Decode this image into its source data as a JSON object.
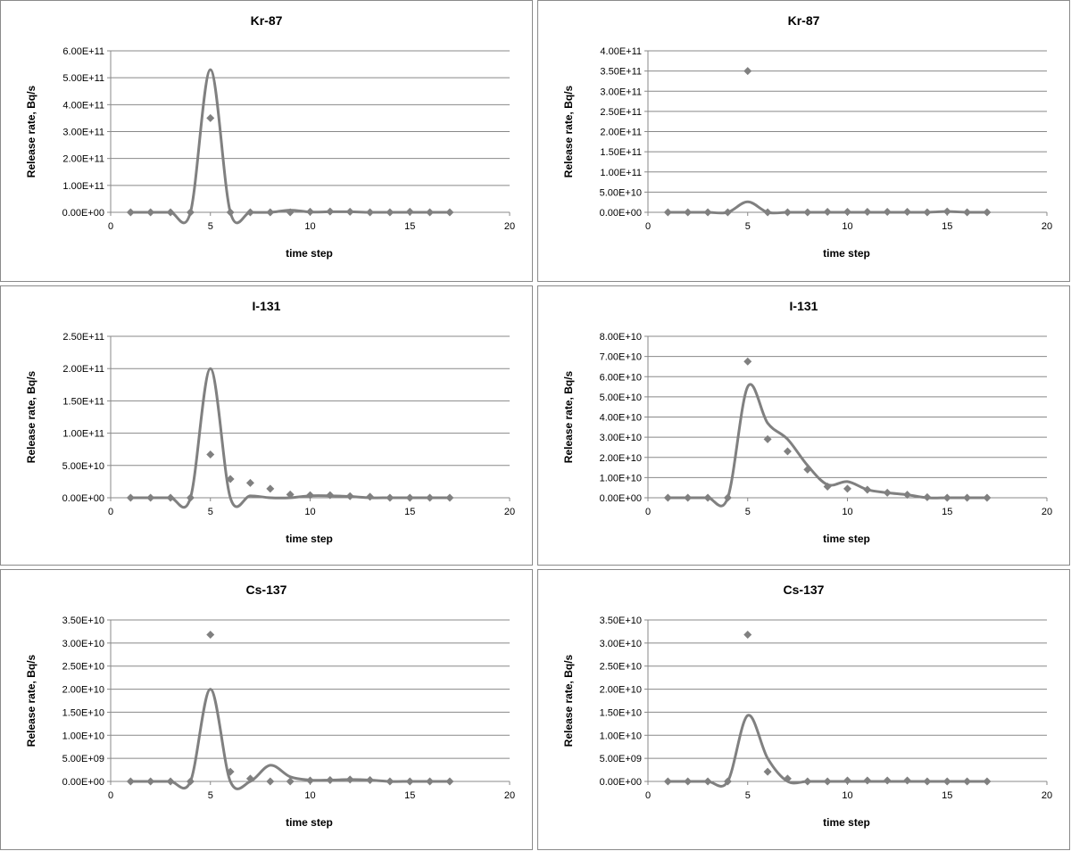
{
  "colors": {
    "series": "#808080",
    "grid": "#888888",
    "axis": "#888888",
    "border": "#8a8a8a"
  },
  "chart_data": [
    {
      "type": "scatter",
      "title": "Kr-87",
      "xlabel": "time step",
      "ylabel": "Release rate, Bq/s",
      "xlim": [
        0,
        20
      ],
      "xticks": [
        0,
        5,
        10,
        15,
        20
      ],
      "ylim": [
        0,
        600000000000.0
      ],
      "yticks": [
        "0.00E+00",
        "1.00E+11",
        "2.00E+11",
        "3.00E+11",
        "4.00E+11",
        "5.00E+11",
        "6.00E+11"
      ],
      "grid": true,
      "series": [
        {
          "kind": "points",
          "x": [
            1,
            2,
            3,
            4,
            5,
            6,
            7,
            8,
            9,
            10,
            11,
            12,
            13,
            14,
            15,
            16,
            17
          ],
          "y": [
            0,
            0,
            0,
            0,
            350000000000.0,
            0,
            0,
            0,
            0,
            2000000000.0,
            3000000000.0,
            2000000000.0,
            0,
            0,
            2000000000.0,
            0,
            0
          ]
        },
        {
          "kind": "smooth-line",
          "x": [
            1,
            2,
            3,
            4,
            5,
            6,
            7,
            8,
            9,
            10,
            11,
            12,
            13,
            14,
            15,
            16,
            17
          ],
          "y": [
            0,
            0,
            0,
            0,
            530000000000.0,
            0,
            0,
            0,
            8000000000.0,
            1000000000.0,
            2000000000.0,
            2000000000.0,
            0,
            0,
            0,
            0,
            0
          ]
        }
      ]
    },
    {
      "type": "scatter",
      "title": "Kr-87",
      "xlabel": "time step",
      "ylabel": "Release rate, Bq/s",
      "xlim": [
        0,
        20
      ],
      "xticks": [
        0,
        5,
        10,
        15,
        20
      ],
      "ylim": [
        0,
        400000000000.0
      ],
      "yticks": [
        "0.00E+00",
        "5.00E+10",
        "1.00E+11",
        "1.50E+11",
        "2.00E+11",
        "2.50E+11",
        "3.00E+11",
        "3.50E+11",
        "4.00E+11"
      ],
      "grid": true,
      "series": [
        {
          "kind": "points",
          "x": [
            1,
            2,
            3,
            4,
            5,
            6,
            7,
            8,
            9,
            10,
            11,
            12,
            13,
            14,
            15,
            16,
            17
          ],
          "y": [
            0,
            0,
            0,
            0,
            350000000000.0,
            0,
            0,
            0,
            1000000000.0,
            1000000000.0,
            1000000000.0,
            1000000000.0,
            1000000000.0,
            0,
            2000000000.0,
            0,
            0
          ]
        },
        {
          "kind": "smooth-line",
          "x": [
            1,
            2,
            3,
            4,
            5,
            6,
            7,
            8,
            9,
            10,
            11,
            12,
            13,
            14,
            15,
            16,
            17
          ],
          "y": [
            0,
            0,
            0,
            0,
            26000000000.0,
            0,
            0,
            0,
            0,
            0,
            0,
            0,
            0,
            0,
            2000000000.0,
            0,
            0
          ]
        }
      ]
    },
    {
      "type": "scatter",
      "title": "I-131",
      "xlabel": "time step",
      "ylabel": "Release rate, Bq/s",
      "xlim": [
        0,
        20
      ],
      "xticks": [
        0,
        5,
        10,
        15,
        20
      ],
      "ylim": [
        0,
        250000000000.0
      ],
      "yticks": [
        "0.00E+00",
        "5.00E+10",
        "1.00E+11",
        "1.50E+11",
        "2.00E+11",
        "2.50E+11"
      ],
      "grid": true,
      "series": [
        {
          "kind": "points",
          "x": [
            1,
            2,
            3,
            4,
            5,
            6,
            7,
            8,
            9,
            10,
            11,
            12,
            13,
            14,
            15,
            16,
            17
          ],
          "y": [
            0,
            0,
            0,
            0,
            67000000000.0,
            29000000000.0,
            23000000000.0,
            14000000000.0,
            5000000000.0,
            4000000000.0,
            4000000000.0,
            2500000000.0,
            1500000000.0,
            0,
            0,
            0,
            0
          ]
        },
        {
          "kind": "smooth-line",
          "x": [
            1,
            2,
            3,
            4,
            5,
            6,
            7,
            8,
            9,
            10,
            11,
            12,
            13,
            14,
            15,
            16,
            17
          ],
          "y": [
            0,
            0,
            0,
            0,
            200000000000.0,
            0,
            3000000000.0,
            0,
            0,
            3000000000.0,
            3000000000.0,
            2000000000.0,
            0,
            0,
            0,
            0,
            0
          ]
        }
      ]
    },
    {
      "type": "scatter",
      "title": "I-131",
      "xlabel": "time step",
      "ylabel": "Release rate, Bq/s",
      "xlim": [
        0,
        20
      ],
      "xticks": [
        0,
        5,
        10,
        15,
        20
      ],
      "ylim": [
        0,
        80000000000.0
      ],
      "yticks": [
        "0.00E+00",
        "1.00E+10",
        "2.00E+10",
        "3.00E+10",
        "4.00E+10",
        "5.00E+10",
        "6.00E+10",
        "7.00E+10",
        "8.00E+10"
      ],
      "grid": true,
      "series": [
        {
          "kind": "points",
          "x": [
            1,
            2,
            3,
            4,
            5,
            6,
            7,
            8,
            9,
            10,
            11,
            12,
            13,
            14,
            15,
            16,
            17
          ],
          "y": [
            0,
            0,
            0,
            0,
            67500000000.0,
            29000000000.0,
            23000000000.0,
            14000000000.0,
            5500000000.0,
            4500000000.0,
            4000000000.0,
            2500000000.0,
            1500000000.0,
            300000000.0,
            0,
            0,
            0
          ]
        },
        {
          "kind": "smooth-line",
          "x": [
            1,
            2,
            3,
            4,
            5,
            6,
            7,
            8,
            9,
            10,
            11,
            12,
            13,
            14,
            15,
            16,
            17
          ],
          "y": [
            0,
            0,
            0,
            0,
            55000000000.0,
            37000000000.0,
            29000000000.0,
            16000000000.0,
            6500000000.0,
            8000000000.0,
            4000000000.0,
            2500000000.0,
            1500000000.0,
            0,
            0,
            0,
            0
          ]
        }
      ]
    },
    {
      "type": "scatter",
      "title": "Cs-137",
      "xlabel": "time step",
      "ylabel": "Release rate, Bq/s",
      "xlim": [
        0,
        20
      ],
      "xticks": [
        0,
        5,
        10,
        15,
        20
      ],
      "ylim": [
        0,
        35000000000.0
      ],
      "yticks": [
        "0.00E+00",
        "5.00E+09",
        "1.00E+10",
        "1.50E+10",
        "2.00E+10",
        "2.50E+10",
        "3.00E+10",
        "3.50E+10"
      ],
      "grid": true,
      "series": [
        {
          "kind": "points",
          "x": [
            1,
            2,
            3,
            4,
            5,
            6,
            7,
            8,
            9,
            10,
            11,
            12,
            13,
            14,
            15,
            16,
            17
          ],
          "y": [
            0,
            0,
            0,
            0,
            31800000000.0,
            2100000000.0,
            600000000.0,
            0,
            0,
            200000000.0,
            300000000.0,
            400000000.0,
            300000000.0,
            0,
            0,
            0,
            0
          ]
        },
        {
          "kind": "smooth-line",
          "x": [
            1,
            2,
            3,
            4,
            5,
            6,
            7,
            8,
            9,
            10,
            11,
            12,
            13,
            14,
            15,
            16,
            17
          ],
          "y": [
            0,
            0,
            0,
            0,
            20000000000.0,
            0,
            0,
            3500000000.0,
            1000000000.0,
            300000000.0,
            300000000.0,
            400000000.0,
            300000000.0,
            0,
            0,
            0,
            0
          ]
        }
      ]
    },
    {
      "type": "scatter",
      "title": "Cs-137",
      "xlabel": "time step",
      "ylabel": "Release rate, Bq/s",
      "xlim": [
        0,
        20
      ],
      "xticks": [
        0,
        5,
        10,
        15,
        20
      ],
      "ylim": [
        0,
        35000000000.0
      ],
      "yticks": [
        "0.00E+00",
        "5.00E+09",
        "1.00E+10",
        "1.50E+10",
        "2.00E+10",
        "2.50E+10",
        "3.00E+10",
        "3.50E+10"
      ],
      "grid": true,
      "series": [
        {
          "kind": "points",
          "x": [
            1,
            2,
            3,
            4,
            5,
            6,
            7,
            8,
            9,
            10,
            11,
            12,
            13,
            14,
            15,
            16,
            17
          ],
          "y": [
            0,
            0,
            0,
            0,
            31800000000.0,
            2100000000.0,
            600000000.0,
            0,
            0,
            200000000.0,
            200000000.0,
            200000000.0,
            200000000.0,
            0,
            0,
            0,
            0
          ]
        },
        {
          "kind": "smooth-line",
          "x": [
            1,
            2,
            3,
            4,
            5,
            6,
            7,
            8,
            9,
            10,
            11,
            12,
            13,
            14,
            15,
            16,
            17
          ],
          "y": [
            0,
            0,
            0,
            0,
            14300000000.0,
            5000000000.0,
            0,
            0,
            0,
            0,
            0,
            0,
            0,
            0,
            0,
            0,
            0
          ]
        }
      ]
    }
  ]
}
